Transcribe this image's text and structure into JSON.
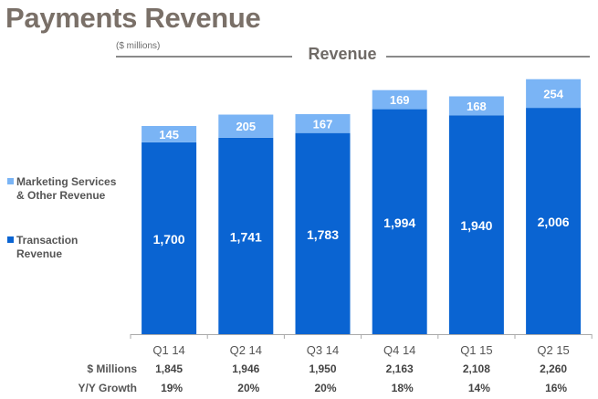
{
  "title": "Payments Revenue",
  "chart_data": {
    "type": "bar",
    "stacked": true,
    "title": "Revenue",
    "units_note": "($ millions)",
    "categories": [
      "Q1 14",
      "Q2 14",
      "Q3 14",
      "Q4 14",
      "Q1 15",
      "Q2 15"
    ],
    "series": [
      {
        "name": "Transaction Revenue",
        "color": "#0a64d2",
        "values": [
          1700,
          1741,
          1783,
          1994,
          1940,
          2006
        ],
        "labels": [
          "1,700",
          "1,741",
          "1,783",
          "1,994",
          "1,940",
          "2,006"
        ]
      },
      {
        "name": "Marketing Services & Other Revenue",
        "color": "#7ab4f5",
        "values": [
          145,
          205,
          167,
          169,
          168,
          254
        ],
        "labels": [
          "145",
          "205",
          "167",
          "169",
          "168",
          "254"
        ]
      }
    ],
    "legend": {
      "placement": "left",
      "items": [
        {
          "line1": "Marketing Services",
          "line2": "& Other Revenue",
          "color": "#7ab4f5"
        },
        {
          "line1": "Transaction",
          "line2": "Revenue",
          "color": "#0a64d2"
        }
      ]
    },
    "ylim": [
      0,
      2300
    ],
    "grid": false,
    "table": {
      "millions_label": "$ Millions",
      "millions": [
        "1,845",
        "1,946",
        "1,950",
        "2,163",
        "2,108",
        "2,260"
      ],
      "growth_label": "Y/Y Growth",
      "growth": [
        "19%",
        "20%",
        "20%",
        "18%",
        "14%",
        "16%"
      ]
    }
  }
}
